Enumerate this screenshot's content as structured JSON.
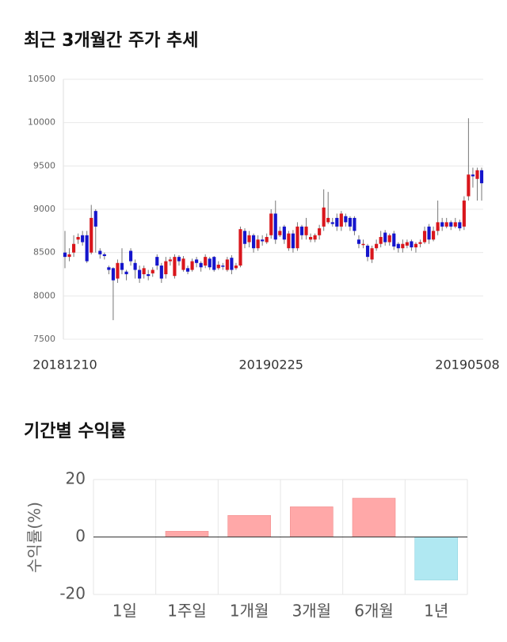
{
  "chart_data": [
    {
      "type": "candlestick",
      "title": "최근 3개월간 주가 추세",
      "categories": [
        "20181210",
        null,
        null,
        null,
        null,
        null,
        null,
        null,
        null,
        null,
        null,
        null,
        null,
        null,
        null,
        null,
        null,
        null,
        null,
        null,
        null,
        null,
        null,
        null,
        null,
        null,
        null,
        null,
        null,
        null,
        null,
        null,
        null,
        null,
        null,
        null,
        null,
        null,
        null,
        null,
        null,
        null,
        null,
        null,
        null,
        null,
        null,
        "20190225",
        null,
        null,
        null,
        null,
        null,
        null,
        null,
        null,
        null,
        null,
        null,
        null,
        null,
        null,
        null,
        null,
        null,
        null,
        null,
        null,
        null,
        null,
        null,
        null,
        null,
        null,
        null,
        null,
        null,
        null,
        null,
        null,
        null,
        null,
        null,
        null,
        null,
        null,
        null,
        null,
        null,
        null,
        null,
        null,
        null,
        null,
        null,
        "20190508"
      ],
      "open": [
        8500,
        8450,
        8500,
        8650,
        8700,
        8700,
        8500,
        8980,
        8520,
        8480,
        8330,
        8320,
        8200,
        8380,
        8280,
        8520,
        8380,
        8300,
        8250,
        8250,
        8260,
        8450,
        8350,
        8250,
        8400,
        8230,
        8450,
        8300,
        8320,
        8300,
        8420,
        8380,
        8350,
        8430,
        8450,
        8320,
        8350,
        8300,
        8440,
        8320,
        8350,
        8750,
        8620,
        8700,
        8550,
        8650,
        8620,
        8700,
        8950,
        8700,
        8800,
        8550,
        8720,
        8550,
        8800,
        8700,
        8650,
        8650,
        8700,
        8800,
        8850,
        8850,
        8900,
        8800,
        8920,
        8900,
        8900,
        8650,
        8600,
        8580,
        8420,
        8550,
        8600,
        8730,
        8620,
        8720,
        8600,
        8550,
        8580,
        8630,
        8560,
        8600,
        8620,
        8800,
        8650,
        8750,
        8850,
        8800,
        8850,
        8800,
        8850,
        8800,
        9150,
        9400,
        9350,
        9450
      ],
      "high": [
        8750,
        8550,
        8700,
        8720,
        8750,
        8750,
        9050,
        9000,
        8550,
        8500,
        8350,
        8330,
        8420,
        8550,
        8300,
        8550,
        8420,
        8350,
        8350,
        8300,
        8330,
        8480,
        8380,
        8450,
        8450,
        8480,
        8470,
        8460,
        8350,
        8430,
        8450,
        8400,
        8480,
        8450,
        8460,
        8400,
        8380,
        8450,
        8470,
        8380,
        8800,
        8780,
        8750,
        8720,
        8700,
        8700,
        8720,
        9000,
        9100,
        8800,
        8820,
        8750,
        8760,
        8850,
        8820,
        8900,
        8720,
        8720,
        8820,
        9230,
        9200,
        8900,
        8950,
        8980,
        8950,
        8920,
        8920,
        8700,
        8650,
        8600,
        8580,
        8650,
        8750,
        8760,
        8720,
        8750,
        8620,
        8650,
        8650,
        8650,
        8620,
        8650,
        8800,
        8830,
        8800,
        9100,
        8900,
        8900,
        8870,
        8900,
        8880,
        9150,
        10050,
        9480,
        9480,
        9480
      ],
      "low": [
        8320,
        8400,
        8450,
        8600,
        8580,
        8380,
        8480,
        8500,
        8430,
        8420,
        8250,
        7720,
        8150,
        8250,
        8180,
        8350,
        8200,
        8150,
        8200,
        8180,
        8220,
        8300,
        8150,
        8200,
        8350,
        8200,
        8350,
        8280,
        8250,
        8280,
        8330,
        8280,
        8320,
        8300,
        8280,
        8300,
        8300,
        8280,
        8250,
        8300,
        8330,
        8550,
        8560,
        8500,
        8520,
        8580,
        8600,
        8660,
        8600,
        8680,
        8600,
        8520,
        8500,
        8520,
        8650,
        8650,
        8620,
        8620,
        8650,
        8750,
        8830,
        8800,
        8750,
        8750,
        8800,
        8750,
        8700,
        8550,
        8550,
        8400,
        8380,
        8520,
        8560,
        8580,
        8580,
        8530,
        8500,
        8500,
        8550,
        8520,
        8500,
        8560,
        8600,
        8600,
        8630,
        8700,
        8750,
        8780,
        8760,
        8780,
        8750,
        8760,
        9100,
        9250,
        9100,
        9100
      ],
      "close": [
        8450,
        8480,
        8600,
        8680,
        8620,
        8400,
        8900,
        8800,
        8480,
        8460,
        8300,
        8180,
        8380,
        8300,
        8250,
        8400,
        8300,
        8200,
        8320,
        8230,
        8300,
        8350,
        8200,
        8400,
        8420,
        8450,
        8400,
        8430,
        8280,
        8400,
        8380,
        8330,
        8450,
        8330,
        8300,
        8360,
        8340,
        8420,
        8300,
        8350,
        8770,
        8600,
        8700,
        8550,
        8650,
        8630,
        8680,
        8950,
        8650,
        8750,
        8650,
        8720,
        8550,
        8800,
        8700,
        8800,
        8680,
        8700,
        8780,
        9020,
        8900,
        8830,
        8800,
        8950,
        8850,
        8800,
        8750,
        8600,
        8600,
        8450,
        8550,
        8600,
        8680,
        8620,
        8700,
        8570,
        8550,
        8600,
        8620,
        8560,
        8600,
        8620,
        8750,
        8650,
        8750,
        8850,
        8800,
        8850,
        8800,
        8850,
        8780,
        9100,
        9400,
        9380,
        9450,
        9300
      ],
      "up_color": "#d9161c",
      "down_color": "#1515cc",
      "ylim": [
        7500,
        10500
      ],
      "yticks": [
        7500,
        8000,
        8500,
        9000,
        9500,
        10000,
        10500
      ],
      "grid": true
    },
    {
      "type": "bar",
      "title": "기간별 수익률",
      "y_label": "수익률(%)",
      "categories": [
        "1일",
        "1주일",
        "1개월",
        "3개월",
        "6개월",
        "1년"
      ],
      "values": [
        0,
        2,
        7.5,
        10.5,
        13.5,
        -15
      ],
      "color": "#ffa8a8",
      "negative_color": "#b0e8f2",
      "ylim": [
        -20,
        20
      ],
      "yticks": [
        -20,
        0,
        20
      ],
      "grid": true
    }
  ]
}
